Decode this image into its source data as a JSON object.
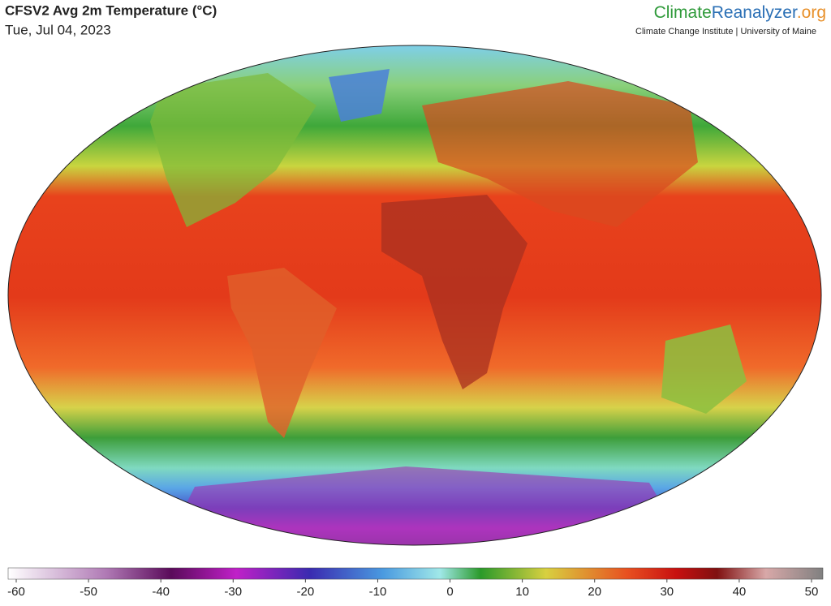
{
  "header": {
    "title": "CFSV2 Avg 2m Temperature (°C)",
    "date": "Tue, Jul 04, 2023"
  },
  "logo": {
    "parts": [
      "Climate",
      "Reanalyzer",
      ".org"
    ],
    "subtitle": "Climate Change Institute | University of Maine"
  },
  "colorbar": {
    "ticks": [
      -60,
      -50,
      -40,
      -30,
      -20,
      -10,
      0,
      10,
      20,
      30,
      40,
      50
    ]
  }
}
